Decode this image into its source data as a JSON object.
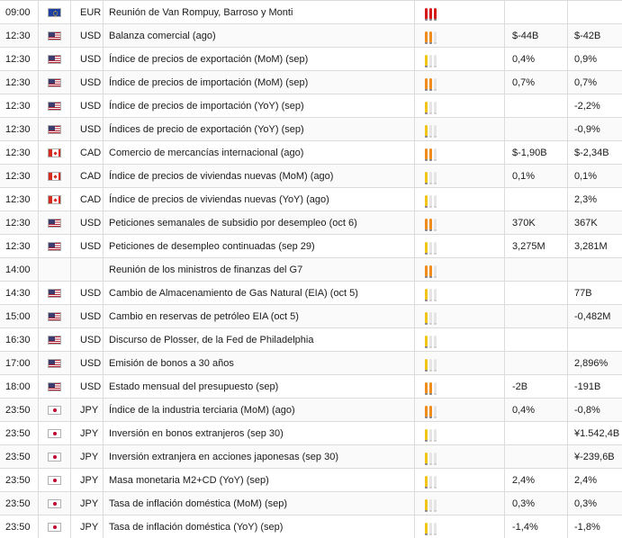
{
  "calendar": {
    "rows": [
      {
        "time": "09:00",
        "flag": "eur",
        "currency": "EUR",
        "event": "Reunión de Van Rompuy, Barroso y Monti",
        "importance": "high",
        "actual": "",
        "forecast": ""
      },
      {
        "time": "12:30",
        "flag": "usd",
        "currency": "USD",
        "event": "Balanza comercial (ago)",
        "importance": "medium",
        "actual": "$-44B",
        "forecast": "$-42B"
      },
      {
        "time": "12:30",
        "flag": "usd",
        "currency": "USD",
        "event": "Índice de precios de exportación (MoM) (sep)",
        "importance": "low",
        "actual": "0,4%",
        "forecast": "0,9%"
      },
      {
        "time": "12:30",
        "flag": "usd",
        "currency": "USD",
        "event": "Índice de precios de importación (MoM) (sep)",
        "importance": "medium",
        "actual": "0,7%",
        "forecast": "0,7%"
      },
      {
        "time": "12:30",
        "flag": "usd",
        "currency": "USD",
        "event": "Índice de precios de importación (YoY) (sep)",
        "importance": "low",
        "actual": "",
        "forecast": "-2,2%"
      },
      {
        "time": "12:30",
        "flag": "usd",
        "currency": "USD",
        "event": "Índices de precio de exportación (YoY) (sep)",
        "importance": "low",
        "actual": "",
        "forecast": "-0,9%"
      },
      {
        "time": "12:30",
        "flag": "cad",
        "currency": "CAD",
        "event": "Comercio de mercancías internacional (ago)",
        "importance": "medium",
        "actual": "$-1,90B",
        "forecast": "$-2,34B"
      },
      {
        "time": "12:30",
        "flag": "cad",
        "currency": "CAD",
        "event": "Índice de precios de viviendas nuevas (MoM) (ago)",
        "importance": "low",
        "actual": "0,1%",
        "forecast": "0,1%"
      },
      {
        "time": "12:30",
        "flag": "cad",
        "currency": "CAD",
        "event": "Índice de precios de viviendas nuevas (YoY) (ago)",
        "importance": "low",
        "actual": "",
        "forecast": "2,3%"
      },
      {
        "time": "12:30",
        "flag": "usd",
        "currency": "USD",
        "event": "Peticiones semanales de subsidio por desempleo (oct 6)",
        "importance": "medium",
        "actual": "370K",
        "forecast": "367K"
      },
      {
        "time": "12:30",
        "flag": "usd",
        "currency": "USD",
        "event": "Peticiones de desempleo continuadas (sep 29)",
        "importance": "low",
        "actual": "3,275M",
        "forecast": "3,281M"
      },
      {
        "time": "14:00",
        "flag": "",
        "currency": "",
        "event": "Reunión de los ministros de finanzas del G7",
        "importance": "medium",
        "actual": "",
        "forecast": ""
      },
      {
        "time": "14:30",
        "flag": "usd",
        "currency": "USD",
        "event": "Cambio de Almacenamiento de Gas Natural (EIA) (oct 5)",
        "importance": "low",
        "actual": "",
        "forecast": "77B"
      },
      {
        "time": "15:00",
        "flag": "usd",
        "currency": "USD",
        "event": "Cambio en reservas de petróleo EIA (oct 5)",
        "importance": "low",
        "actual": "",
        "forecast": "-0,482M"
      },
      {
        "time": "16:30",
        "flag": "usd",
        "currency": "USD",
        "event": "Discurso de Plosser, de la Fed de Philadelphia",
        "importance": "low",
        "actual": "",
        "forecast": ""
      },
      {
        "time": "17:00",
        "flag": "usd",
        "currency": "USD",
        "event": "Emisión de bonos a 30 años",
        "importance": "low",
        "actual": "",
        "forecast": "2,896%"
      },
      {
        "time": "18:00",
        "flag": "usd",
        "currency": "USD",
        "event": "Estado mensual del presupuesto (sep)",
        "importance": "medium",
        "actual": "-2B",
        "forecast": "-191B"
      },
      {
        "time": "23:50",
        "flag": "jpy",
        "currency": "JPY",
        "event": "Índice de la industria terciaria (MoM) (ago)",
        "importance": "medium",
        "actual": "0,4%",
        "forecast": "-0,8%"
      },
      {
        "time": "23:50",
        "flag": "jpy",
        "currency": "JPY",
        "event": "Inversión en bonos extranjeros (sep 30)",
        "importance": "low",
        "actual": "",
        "forecast": "¥1.542,4B"
      },
      {
        "time": "23:50",
        "flag": "jpy",
        "currency": "JPY",
        "event": "Inversión extranjera en acciones japonesas (sep 30)",
        "importance": "low",
        "actual": "",
        "forecast": "¥-239,6B"
      },
      {
        "time": "23:50",
        "flag": "jpy",
        "currency": "JPY",
        "event": "Masa monetaria M2+CD (YoY) (sep)",
        "importance": "low",
        "actual": "2,4%",
        "forecast": "2,4%"
      },
      {
        "time": "23:50",
        "flag": "jpy",
        "currency": "JPY",
        "event": "Tasa de inflación doméstica (MoM) (sep)",
        "importance": "low",
        "actual": "0,3%",
        "forecast": "0,3%"
      },
      {
        "time": "23:50",
        "flag": "jpy",
        "currency": "JPY",
        "event": "Tasa de inflación doméstica (YoY) (sep)",
        "importance": "low",
        "actual": "-1,4%",
        "forecast": "-1,8%"
      }
    ]
  },
  "colors": {
    "importance_high": "#d51a1a",
    "importance_medium": "#ef8c1c",
    "importance_low": "#f0c516",
    "grid": "#dcdcdc"
  },
  "icons": {
    "eur": "eu-flag-icon",
    "usd": "us-flag-icon",
    "cad": "canada-flag-icon",
    "jpy": "japan-flag-icon",
    "importance": "importance-bulbs-icon"
  }
}
